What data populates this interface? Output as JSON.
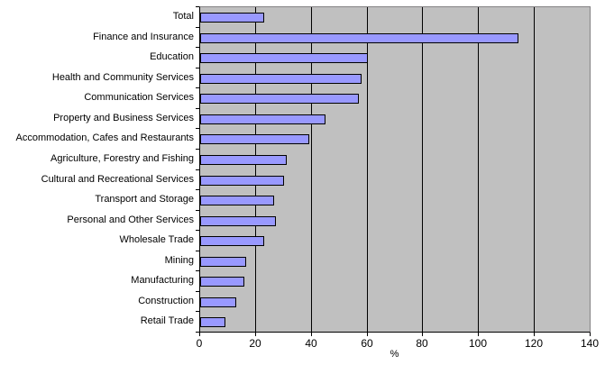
{
  "chart_data": {
    "type": "bar",
    "orientation": "horizontal",
    "title": "",
    "xlabel": "%",
    "ylabel": "",
    "categories": [
      "Total",
      "Finance and Insurance",
      "Education",
      "Health and Community Services",
      "Communication Services",
      "Property and Business Services",
      "Accommodation, Cafes and Restaurants",
      "Agriculture, Forestry and Fishing",
      "Cultural and Recreational Services",
      "Transport and Storage",
      "Personal and Other Services",
      "Wholesale Trade",
      "Mining",
      "Manufacturing",
      "Construction",
      "Retail Trade"
    ],
    "values": [
      23,
      114,
      60,
      58,
      57,
      45,
      39,
      31,
      30,
      26.5,
      27,
      23,
      16.5,
      16,
      13,
      9
    ],
    "xlim": [
      0,
      140
    ],
    "xticks": [
      0,
      20,
      40,
      60,
      80,
      100,
      120,
      140
    ],
    "grid": true,
    "legend": false,
    "bar_color": "#9999ff",
    "bar_border_color": "#000000",
    "plot_bg_color": "#c0c0c0",
    "plot_border_color": "#848284",
    "gridline_color": "#000000"
  }
}
